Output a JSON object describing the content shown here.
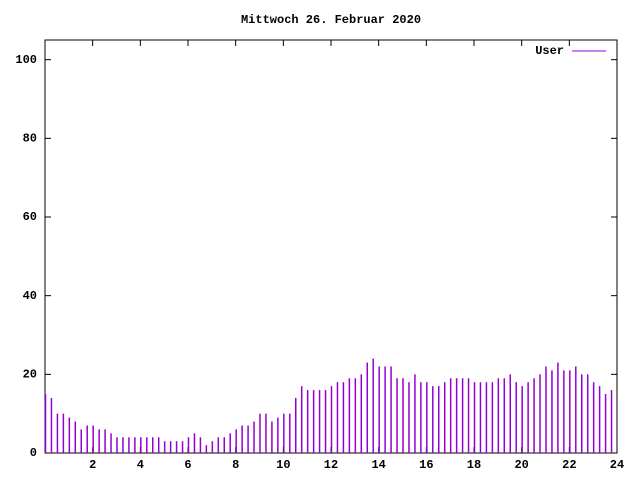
{
  "chart_data": {
    "type": "impulse",
    "title": "Mittwoch 26. Februar 2020",
    "x": [
      0,
      0.25,
      0.5,
      0.75,
      1,
      1.25,
      1.5,
      1.75,
      2,
      2.25,
      2.5,
      2.75,
      3,
      3.25,
      3.5,
      3.75,
      4,
      4.25,
      4.5,
      4.75,
      5,
      5.25,
      5.5,
      5.75,
      6,
      6.25,
      6.5,
      6.75,
      7,
      7.25,
      7.5,
      7.75,
      8,
      8.25,
      8.5,
      8.75,
      9,
      9.25,
      9.5,
      9.75,
      10,
      10.25,
      10.5,
      10.75,
      11,
      11.25,
      11.5,
      11.75,
      12,
      12.25,
      12.5,
      12.75,
      13,
      13.25,
      13.5,
      13.75,
      14,
      14.25,
      14.5,
      14.75,
      15,
      15.25,
      15.5,
      15.75,
      16,
      16.25,
      16.5,
      16.75,
      17,
      17.25,
      17.5,
      17.75,
      18,
      18.25,
      18.5,
      18.75,
      19,
      19.25,
      19.5,
      19.75,
      20,
      20.25,
      20.5,
      20.75,
      21,
      21.25,
      21.5,
      21.75,
      22,
      22.25,
      22.5,
      22.75,
      23,
      23.25,
      23.5,
      23.75
    ],
    "series": [
      {
        "name": "User",
        "color": "#9400d3",
        "values": [
          15,
          14,
          10,
          10,
          9,
          8,
          6,
          7,
          7,
          6,
          6,
          5,
          4,
          4,
          4,
          4,
          4,
          4,
          4,
          4,
          3,
          3,
          3,
          3,
          4,
          5,
          4,
          2,
          3,
          4,
          4,
          5,
          6,
          7,
          7,
          8,
          10,
          10,
          8,
          9,
          10,
          10,
          14,
          17,
          16,
          16,
          16,
          16,
          17,
          18,
          18,
          19,
          19,
          20,
          23,
          24,
          22,
          22,
          22,
          19,
          19,
          18,
          20,
          18,
          18,
          17,
          17,
          18,
          19,
          19,
          19,
          19,
          18,
          18,
          18,
          18,
          19,
          19,
          20,
          18,
          17,
          18,
          19,
          20,
          22,
          21,
          23,
          21,
          21,
          22,
          20,
          20,
          18,
          17,
          15,
          16
        ]
      }
    ],
    "xlim": [
      0,
      24
    ],
    "xticks": [
      2,
      4,
      6,
      8,
      10,
      12,
      14,
      16,
      18,
      20,
      22,
      24
    ],
    "ylim": [
      0,
      105
    ],
    "yticks": [
      0,
      20,
      40,
      60,
      80,
      100
    ],
    "legend": "top-right"
  }
}
